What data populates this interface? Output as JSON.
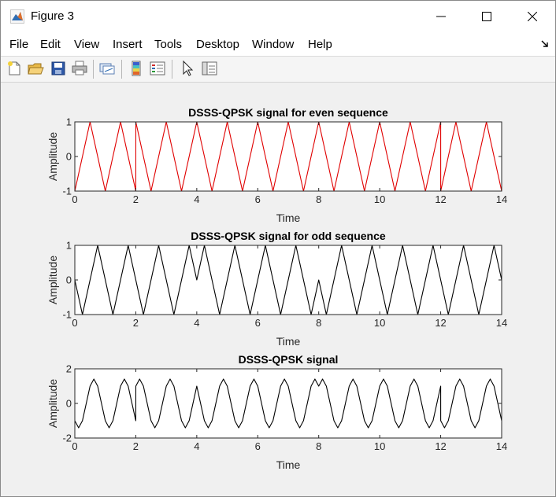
{
  "window": {
    "title": "Figure 3"
  },
  "menu": {
    "items": [
      "File",
      "Edit",
      "View",
      "Insert",
      "Tools",
      "Desktop",
      "Window",
      "Help"
    ]
  },
  "toolbar": {
    "icons": [
      "new-figure-icon",
      "open-file-icon",
      "save-icon",
      "print-icon",
      "link-plot-icon",
      "colorbar-icon",
      "legend-icon",
      "edit-plot-arrow-icon",
      "property-inspector-icon"
    ]
  },
  "chart_data": [
    {
      "type": "line",
      "title": "DSSS-QPSK signal for even sequence",
      "xlabel": "Time",
      "ylabel": "Amplitude",
      "xlim": [
        0,
        14
      ],
      "ylim": [
        -1,
        1
      ],
      "xticks": [
        "0",
        "2",
        "4",
        "6",
        "8",
        "10",
        "12",
        "14"
      ],
      "yticks": [
        "-1",
        "0",
        "1"
      ],
      "color": "#e00000",
      "grid": false,
      "series": [
        {
          "x": [
            0,
            0.25,
            0.5,
            0.75,
            1,
            1.25,
            1.5,
            1.75,
            2,
            2.001,
            2.25,
            2.5,
            2.75,
            3,
            3.25,
            3.5,
            3.75,
            4,
            4.25,
            4.5,
            4.75,
            5,
            5.25,
            5.5,
            5.75,
            6,
            6.25,
            6.5,
            6.75,
            7,
            7.25,
            7.5,
            7.75,
            8,
            8.25,
            8.5,
            8.75,
            9,
            9.25,
            9.5,
            9.75,
            10,
            10.25,
            10.5,
            10.75,
            11,
            11.25,
            11.5,
            11.75,
            12,
            12.001,
            12.25,
            12.5,
            12.75,
            13,
            13.25,
            13.5,
            13.75,
            14
          ],
          "y": [
            -1,
            0,
            1,
            0,
            -1,
            0,
            1,
            0,
            -1,
            1,
            0,
            -1,
            0,
            1,
            0,
            -1,
            0,
            1,
            0,
            -1,
            0,
            1,
            0,
            -1,
            0,
            1,
            0,
            -1,
            0,
            1,
            0,
            -1,
            0,
            1,
            0,
            -1,
            0,
            1,
            0,
            -1,
            0,
            1,
            0,
            -1,
            0,
            1,
            0,
            -1,
            0,
            1,
            -1,
            0,
            1,
            0,
            -1,
            0,
            1,
            0,
            -1
          ]
        }
      ]
    },
    {
      "type": "line",
      "title": "DSSS-QPSK signal for odd sequence",
      "xlabel": "Time",
      "ylabel": "Amplitude",
      "xlim": [
        0,
        14
      ],
      "ylim": [
        -1,
        1
      ],
      "xticks": [
        "0",
        "2",
        "4",
        "6",
        "8",
        "10",
        "12",
        "14"
      ],
      "yticks": [
        "-1",
        "0",
        "1"
      ],
      "color": "#000000",
      "grid": false,
      "series": [
        {
          "x": [
            0,
            0.25,
            0.5,
            0.75,
            1,
            1.25,
            1.5,
            1.75,
            2,
            2.25,
            2.5,
            2.75,
            3,
            3.25,
            3.5,
            3.75,
            4,
            4.25,
            4.5,
            4.75,
            5,
            5.25,
            5.5,
            5.75,
            6,
            6.25,
            6.5,
            6.75,
            7,
            7.25,
            7.5,
            7.75,
            8,
            8.25,
            8.5,
            8.75,
            9,
            9.25,
            9.5,
            9.75,
            10,
            10.25,
            10.5,
            10.75,
            11,
            11.25,
            11.5,
            11.75,
            12,
            12.25,
            12.5,
            12.75,
            13,
            13.25,
            13.5,
            13.75,
            14
          ],
          "y": [
            0,
            -1,
            0,
            1,
            0,
            -1,
            0,
            1,
            0,
            -1,
            0,
            1,
            0,
            -1,
            0,
            1,
            0,
            1,
            0,
            -1,
            0,
            1,
            0,
            -1,
            0,
            1,
            0,
            -1,
            0,
            1,
            0,
            -1,
            0,
            -1,
            0,
            1,
            0,
            -1,
            0,
            1,
            0,
            -1,
            0,
            1,
            0,
            -1,
            0,
            1,
            0,
            -1,
            0,
            1,
            0,
            -1,
            0,
            1,
            0
          ]
        }
      ]
    },
    {
      "type": "line",
      "title": "DSSS-QPSK signal",
      "xlabel": "Time",
      "ylabel": "Amplitude",
      "xlim": [
        0,
        14
      ],
      "ylim": [
        -2,
        2
      ],
      "xticks": [
        "0",
        "2",
        "4",
        "6",
        "8",
        "10",
        "12",
        "14"
      ],
      "yticks": [
        "-2",
        "0",
        "2"
      ],
      "color": "#000000",
      "grid": false,
      "series": [
        {
          "x": [
            0,
            0.125,
            0.25,
            0.375,
            0.5,
            0.625,
            0.75,
            0.875,
            1,
            1.125,
            1.25,
            1.375,
            1.5,
            1.625,
            1.75,
            1.875,
            2,
            2.001,
            2.125,
            2.25,
            2.375,
            2.5,
            2.625,
            2.75,
            2.875,
            3,
            3.125,
            3.25,
            3.375,
            3.5,
            3.625,
            3.75,
            3.875,
            4,
            4.125,
            4.25,
            4.375,
            4.5,
            4.625,
            4.75,
            4.875,
            5,
            5.125,
            5.25,
            5.375,
            5.5,
            5.625,
            5.75,
            5.875,
            6,
            6.125,
            6.25,
            6.375,
            6.5,
            6.625,
            6.75,
            6.875,
            7,
            7.125,
            7.25,
            7.375,
            7.5,
            7.625,
            7.75,
            7.875,
            8,
            8.125,
            8.25,
            8.375,
            8.5,
            8.625,
            8.75,
            8.875,
            9,
            9.125,
            9.25,
            9.375,
            9.5,
            9.625,
            9.75,
            9.875,
            10,
            10.125,
            10.25,
            10.375,
            10.5,
            10.625,
            10.75,
            10.875,
            11,
            11.125,
            11.25,
            11.375,
            11.5,
            11.625,
            11.75,
            11.875,
            12,
            12.001,
            12.125,
            12.25,
            12.375,
            12.5,
            12.625,
            12.75,
            12.875,
            13,
            13.125,
            13.25,
            13.375,
            13.5,
            13.625,
            13.75,
            13.875,
            14
          ],
          "y": [
            -1,
            -1.41,
            -1,
            0,
            1,
            1.41,
            1,
            0,
            -1,
            -1.41,
            -1,
            0,
            1,
            1.41,
            1,
            0,
            -1,
            1,
            1.41,
            1,
            0,
            -1,
            -1.41,
            -1,
            0,
            1,
            1.41,
            1,
            0,
            -1,
            -1.41,
            -1,
            0,
            1,
            0,
            -1,
            -1.41,
            -1,
            0,
            1,
            1.41,
            1,
            0,
            -1,
            -1.41,
            -1,
            0,
            1,
            1.41,
            1,
            0,
            -1,
            -1.41,
            -1,
            0,
            1,
            1.41,
            1,
            0,
            -1,
            -1.41,
            -1,
            0,
            1,
            1.41,
            1,
            1.41,
            1,
            0,
            -1,
            -1.41,
            -1,
            0,
            1,
            1.41,
            1,
            0,
            -1,
            -1.41,
            -1,
            0,
            1,
            1.41,
            1,
            0,
            -1,
            -1.41,
            -1,
            0,
            1,
            1.41,
            1,
            0,
            -1,
            -1.41,
            -1,
            0,
            1,
            -1,
            -1.41,
            -1,
            0,
            1,
            1.41,
            1,
            0,
            -1,
            -1.41,
            -1,
            0,
            1,
            1.41,
            1,
            0,
            -1
          ]
        }
      ]
    }
  ]
}
